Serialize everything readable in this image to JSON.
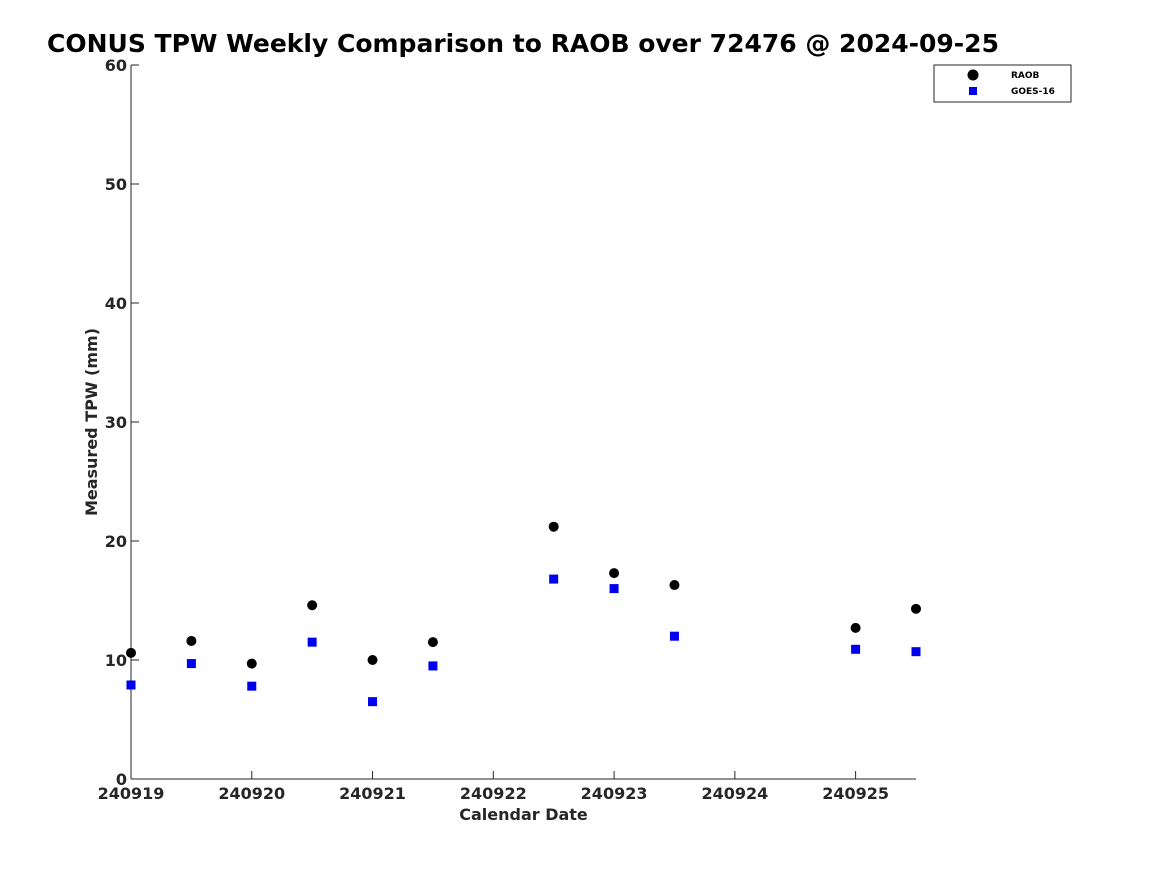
{
  "chart_data": {
    "type": "scatter",
    "title": "CONUS TPW Weekly Comparison to RAOB over 72476 @ 2024-09-25",
    "xlabel": "Calendar Date",
    "ylabel": "Measured TPW (mm)",
    "x_tick_labels": [
      "240919",
      "240920",
      "240921",
      "240922",
      "240923",
      "240924",
      "240925"
    ],
    "x_tick_days": [
      0,
      1,
      2,
      3,
      4,
      5,
      6
    ],
    "xlim": [
      0,
      6.5
    ],
    "y_ticks": [
      0,
      10,
      20,
      30,
      40,
      50,
      60
    ],
    "ylim": [
      0,
      60
    ],
    "grid": false,
    "legend_position": "top-right",
    "series": [
      {
        "name": "RAOB",
        "marker": "circle",
        "color": "#000000",
        "x": [
          0,
          0.5,
          1,
          1.5,
          2,
          2.5,
          3.5,
          4,
          4.5,
          6,
          6.5
        ],
        "y": [
          10.6,
          11.6,
          9.7,
          14.6,
          10.0,
          11.5,
          21.2,
          17.3,
          16.3,
          12.7,
          14.3
        ]
      },
      {
        "name": "GOES-16",
        "marker": "square",
        "color": "#0000ee",
        "x": [
          0,
          0.5,
          1,
          1.5,
          2,
          2.5,
          3.5,
          4,
          4.5,
          6,
          6.5
        ],
        "y": [
          7.9,
          9.7,
          7.8,
          11.5,
          6.5,
          9.5,
          16.8,
          16.0,
          12.0,
          10.9,
          10.7
        ]
      }
    ]
  }
}
